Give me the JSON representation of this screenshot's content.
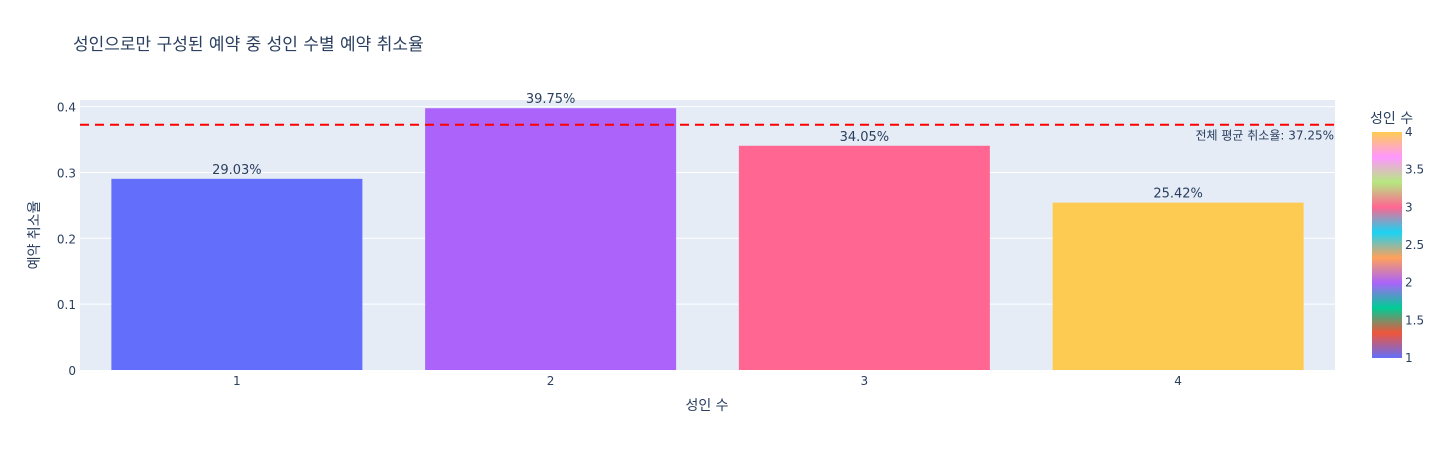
{
  "chart_data": {
    "type": "bar",
    "title": "성인으로만 구성된 예약 중 성인 수별 예약 취소율",
    "xlabel": "성인 수",
    "ylabel": "예약 취소율",
    "categories": [
      "1",
      "2",
      "3",
      "4"
    ],
    "values": [
      0.2903,
      0.3975,
      0.3405,
      0.2542
    ],
    "data_labels": [
      "29.03%",
      "39.75%",
      "34.05%",
      "25.42%"
    ],
    "bar_colors": [
      "#636efa",
      "#ab63fa",
      "#ff6692",
      "#fecb52"
    ],
    "ylim": [
      0,
      0.41
    ],
    "yticks": [
      0,
      0.1,
      0.2,
      0.3,
      0.4
    ],
    "ytick_labels": [
      "0",
      "0.1",
      "0.2",
      "0.3",
      "0.4"
    ],
    "grid": true,
    "reference_line": {
      "value": 0.3725,
      "label": "전체 평균 취소율: 37.25%",
      "color": "#ff0000",
      "style": "dashed"
    },
    "colorbar": {
      "title": "성인 수",
      "range": [
        1,
        4
      ],
      "ticks": [
        1,
        1.5,
        2,
        2.5,
        3,
        3.5,
        4
      ],
      "tick_labels": [
        "1",
        "1.5",
        "2",
        "2.5",
        "3",
        "3.5",
        "4"
      ],
      "colors": [
        "#636efa",
        "#EF553B",
        "#00cc96",
        "#ab63fa",
        "#FFA15A",
        "#19d3f3",
        "#FF6692",
        "#B6E880",
        "#FF97FF",
        "#FECB52"
      ]
    },
    "plot_background": "#e5ecf6"
  }
}
